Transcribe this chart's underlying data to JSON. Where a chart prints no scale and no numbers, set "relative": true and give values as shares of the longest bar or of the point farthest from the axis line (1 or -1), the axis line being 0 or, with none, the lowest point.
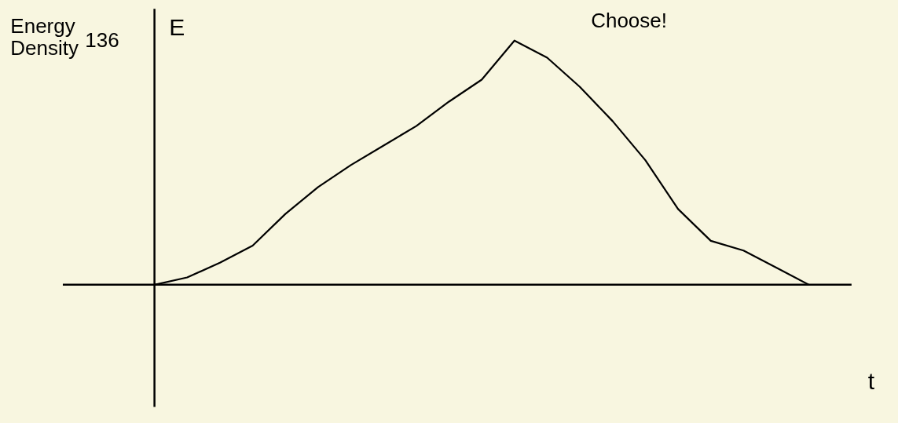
{
  "chart_data": {
    "type": "line",
    "relative": true,
    "xlabel": "t",
    "ylabel": "E",
    "categories": [
      null,
      null,
      null,
      null,
      null,
      null,
      null,
      null,
      null,
      null,
      null,
      null,
      null,
      null,
      null,
      null,
      null,
      null,
      null,
      null,
      null
    ],
    "series": [
      {
        "color": "#000000",
        "values": [
          0,
          0.03,
          0.09,
          0.16,
          0.29,
          0.4,
          0.49,
          0.57,
          0.65,
          0.75,
          0.84,
          1.0,
          0.93,
          0.81,
          0.67,
          0.51,
          0.31,
          0.18,
          0.14,
          0.07,
          0.0
        ]
      }
    ],
    "annotations": [
      "Energy Density",
      "136",
      "Choose!"
    ],
    "line_style": "solid"
  }
}
